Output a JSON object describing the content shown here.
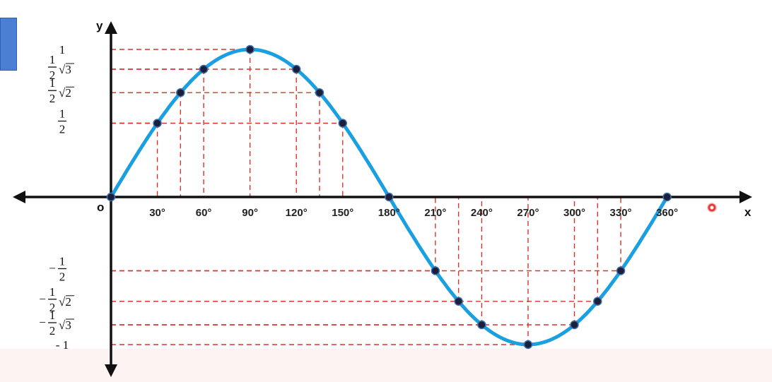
{
  "chart_data": {
    "type": "line",
    "xlabel": "x",
    "ylabel": "y",
    "origin_label": "o",
    "xlim": [
      0,
      360
    ],
    "ylim": [
      -1,
      1
    ],
    "x_ticks": [
      {
        "value": 30,
        "label": "30°"
      },
      {
        "value": 60,
        "label": "60°"
      },
      {
        "value": 90,
        "label": "90°"
      },
      {
        "value": 120,
        "label": "120°"
      },
      {
        "value": 150,
        "label": "150°"
      },
      {
        "value": 180,
        "label": "180°"
      },
      {
        "value": 210,
        "label": "210°"
      },
      {
        "value": 240,
        "label": "240°"
      },
      {
        "value": 270,
        "label": "270°"
      },
      {
        "value": 300,
        "label": "300°"
      },
      {
        "value": 330,
        "label": "330°"
      },
      {
        "value": 360,
        "label": "360°"
      }
    ],
    "y_ticks": [
      {
        "value": 1,
        "label": "1",
        "kind": "int"
      },
      {
        "value": 0.866,
        "label": "1/2 √3",
        "kind": "frac",
        "neg": false,
        "root": "3"
      },
      {
        "value": 0.707,
        "label": "1/2 √2",
        "kind": "frac",
        "neg": false,
        "root": "2"
      },
      {
        "value": 0.5,
        "label": "1/2",
        "kind": "frac",
        "neg": false,
        "root": ""
      },
      {
        "value": -0.5,
        "label": "− 1/2",
        "kind": "frac",
        "neg": true,
        "root": ""
      },
      {
        "value": -0.707,
        "label": "− 1/2 √2",
        "kind": "frac",
        "neg": true,
        "root": "2"
      },
      {
        "value": -0.866,
        "label": "− 1/2 √3",
        "kind": "frac",
        "neg": true,
        "root": "3"
      },
      {
        "value": -1,
        "label": "- 1",
        "kind": "int"
      }
    ],
    "series": [
      {
        "function": "sin",
        "color": "#1a9fe0",
        "points": [
          {
            "x": 0,
            "y": 0
          },
          {
            "x": 30,
            "y": 0.5
          },
          {
            "x": 45,
            "y": 0.707
          },
          {
            "x": 60,
            "y": 0.866
          },
          {
            "x": 90,
            "y": 1
          },
          {
            "x": 120,
            "y": 0.866
          },
          {
            "x": 135,
            "y": 0.707
          },
          {
            "x": 150,
            "y": 0.5
          },
          {
            "x": 180,
            "y": 0
          },
          {
            "x": 210,
            "y": -0.5
          },
          {
            "x": 225,
            "y": -0.707
          },
          {
            "x": 240,
            "y": -0.866
          },
          {
            "x": 270,
            "y": -1
          },
          {
            "x": 300,
            "y": -0.866
          },
          {
            "x": 315,
            "y": -0.707
          },
          {
            "x": 330,
            "y": -0.5
          },
          {
            "x": 360,
            "y": 0
          }
        ]
      }
    ],
    "guide_color": "#d9342b",
    "axis_color": "#111111",
    "grid": false
  }
}
